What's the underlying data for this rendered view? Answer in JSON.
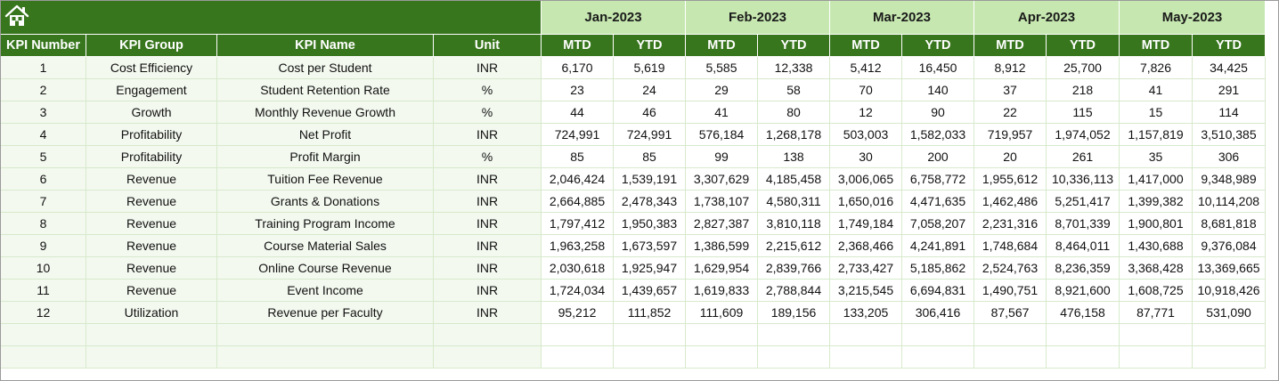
{
  "toolbar": {
    "home_icon": "home-icon"
  },
  "months": [
    "Jan-2023",
    "Feb-2023",
    "Mar-2023",
    "Apr-2023",
    "May-2023"
  ],
  "columns": {
    "kpi_number": "KPI Number",
    "kpi_group": "KPI Group",
    "kpi_name": "KPI Name",
    "unit": "Unit",
    "mtd": "MTD",
    "ytd": "YTD"
  },
  "colors": {
    "band": "#38761d",
    "month_header": "#c6e8b0",
    "row_fill": "#f3f9ef",
    "grid": "#d7e9cc"
  },
  "rows": [
    {
      "num": "1",
      "group": "Cost Efficiency",
      "name": "Cost per Student",
      "unit": "INR",
      "values": [
        "6,170",
        "5,619",
        "5,585",
        "12,338",
        "5,412",
        "16,450",
        "8,912",
        "25,700",
        "7,826",
        "34,425"
      ]
    },
    {
      "num": "2",
      "group": "Engagement",
      "name": "Student Retention Rate",
      "unit": "%",
      "values": [
        "23",
        "24",
        "29",
        "58",
        "70",
        "140",
        "37",
        "218",
        "41",
        "291"
      ]
    },
    {
      "num": "3",
      "group": "Growth",
      "name": "Monthly Revenue Growth",
      "unit": "%",
      "values": [
        "44",
        "46",
        "41",
        "80",
        "12",
        "90",
        "22",
        "115",
        "15",
        "114"
      ]
    },
    {
      "num": "4",
      "group": "Profitability",
      "name": "Net Profit",
      "unit": "INR",
      "values": [
        "724,991",
        "724,991",
        "576,184",
        "1,268,178",
        "503,003",
        "1,582,033",
        "719,957",
        "1,974,052",
        "1,157,819",
        "3,510,385"
      ]
    },
    {
      "num": "5",
      "group": "Profitability",
      "name": "Profit Margin",
      "unit": "%",
      "values": [
        "85",
        "85",
        "99",
        "138",
        "30",
        "200",
        "20",
        "261",
        "35",
        "306"
      ]
    },
    {
      "num": "6",
      "group": "Revenue",
      "name": "Tuition Fee Revenue",
      "unit": "INR",
      "values": [
        "2,046,424",
        "1,539,191",
        "3,307,629",
        "4,185,458",
        "3,006,065",
        "6,758,772",
        "1,955,612",
        "10,336,113",
        "1,417,000",
        "9,348,989"
      ]
    },
    {
      "num": "7",
      "group": "Revenue",
      "name": "Grants & Donations",
      "unit": "INR",
      "values": [
        "2,664,885",
        "2,478,343",
        "1,738,107",
        "4,580,311",
        "1,650,016",
        "4,471,635",
        "1,462,486",
        "5,251,417",
        "1,399,382",
        "10,114,208"
      ]
    },
    {
      "num": "8",
      "group": "Revenue",
      "name": "Training Program Income",
      "unit": "INR",
      "values": [
        "1,797,412",
        "1,950,383",
        "2,827,387",
        "3,810,118",
        "1,749,184",
        "7,058,207",
        "2,231,316",
        "8,701,339",
        "1,900,801",
        "8,681,818"
      ]
    },
    {
      "num": "9",
      "group": "Revenue",
      "name": "Course Material Sales",
      "unit": "INR",
      "values": [
        "1,963,258",
        "1,673,597",
        "1,386,599",
        "2,215,612",
        "2,368,466",
        "4,241,891",
        "1,748,684",
        "8,464,011",
        "1,430,688",
        "9,376,084"
      ]
    },
    {
      "num": "10",
      "group": "Revenue",
      "name": "Online Course Revenue",
      "unit": "INR",
      "values": [
        "2,030,618",
        "1,925,947",
        "1,629,954",
        "2,839,766",
        "2,733,427",
        "5,185,862",
        "2,524,763",
        "8,236,359",
        "3,368,428",
        "13,369,665"
      ]
    },
    {
      "num": "11",
      "group": "Revenue",
      "name": "Event Income",
      "unit": "INR",
      "values": [
        "1,724,034",
        "1,439,657",
        "1,619,833",
        "2,788,844",
        "3,215,545",
        "6,694,831",
        "1,490,751",
        "8,921,600",
        "1,608,725",
        "10,918,426"
      ]
    },
    {
      "num": "12",
      "group": "Utilization",
      "name": "Revenue per Faculty",
      "unit": "INR",
      "values": [
        "95,212",
        "111,852",
        "111,609",
        "189,156",
        "133,205",
        "306,416",
        "87,567",
        "476,158",
        "87,771",
        "531,090"
      ]
    }
  ],
  "blank_rows": 2
}
